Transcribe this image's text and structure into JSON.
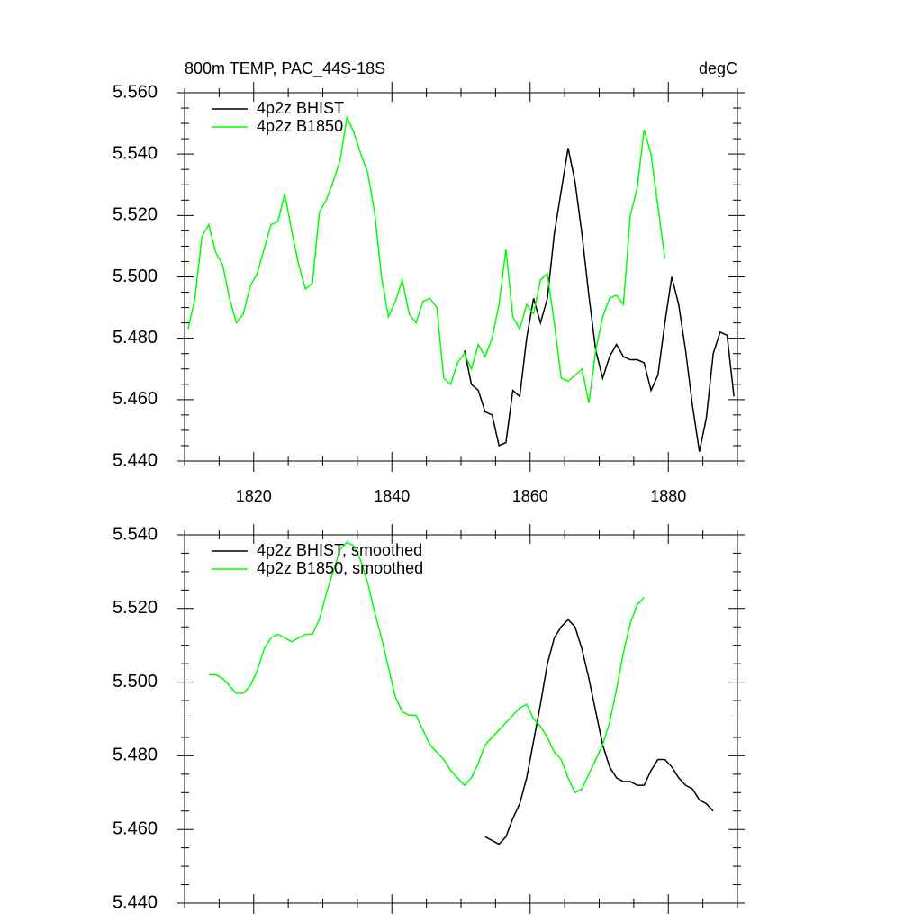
{
  "chart_data": [
    {
      "type": "line",
      "title": "800m TEMP, PAC_44S-18S",
      "units": "degC",
      "xlim": [
        1810,
        1890
      ],
      "xticks": [
        1820,
        1840,
        1860,
        1880
      ],
      "ylim": [
        5.44,
        5.56
      ],
      "yticks": [
        {
          "value": 5.44,
          "label": "5.440"
        },
        {
          "value": 5.46,
          "label": "5.460"
        },
        {
          "value": 5.48,
          "label": "5.480"
        },
        {
          "value": 5.5,
          "label": "5.500"
        },
        {
          "value": 5.52,
          "label": "5.520"
        },
        {
          "value": 5.54,
          "label": "5.540"
        },
        {
          "value": 5.56,
          "label": "5.560"
        }
      ],
      "legend": "upper left",
      "series": [
        {
          "name": "4p2z BHIST",
          "color": "#000000",
          "x": [
            1850.5,
            1851.5,
            1852.5,
            1853.5,
            1854.5,
            1855.5,
            1856.5,
            1857.5,
            1858.5,
            1859.5,
            1860.5,
            1861.5,
            1862.5,
            1863.5,
            1864.5,
            1865.5,
            1866.5,
            1867.5,
            1868.5,
            1869.5,
            1870.5,
            1871.5,
            1872.5,
            1873.5,
            1874.5,
            1875.5,
            1876.5,
            1877.5,
            1878.5,
            1879.5,
            1880.5,
            1881.5,
            1882.5,
            1883.5,
            1884.5,
            1885.5,
            1886.5,
            1887.5,
            1888.5,
            1889.5
          ],
          "values": [
            5.476,
            5.465,
            5.463,
            5.456,
            5.455,
            5.445,
            5.446,
            5.463,
            5.461,
            5.48,
            5.493,
            5.485,
            5.493,
            5.514,
            5.528,
            5.542,
            5.531,
            5.514,
            5.494,
            5.476,
            5.467,
            5.474,
            5.478,
            5.474,
            5.473,
            5.473,
            5.472,
            5.463,
            5.468,
            5.485,
            5.5,
            5.491,
            5.476,
            5.458,
            5.443,
            5.454,
            5.475,
            5.482,
            5.481,
            5.461
          ]
        },
        {
          "name": "4p2z B1850",
          "color": "#00ff00",
          "x": [
            1810.5,
            1811.5,
            1812.5,
            1813.5,
            1814.5,
            1815.5,
            1816.5,
            1817.5,
            1818.5,
            1819.5,
            1820.5,
            1821.5,
            1822.5,
            1823.5,
            1824.5,
            1825.5,
            1826.5,
            1827.5,
            1828.5,
            1829.5,
            1830.5,
            1831.5,
            1832.5,
            1833.5,
            1834.5,
            1835.5,
            1836.5,
            1837.5,
            1838.5,
            1839.5,
            1840.5,
            1841.5,
            1842.5,
            1843.5,
            1844.5,
            1845.5,
            1846.5,
            1847.5,
            1848.5,
            1849.5,
            1850.5,
            1851.5,
            1852.5,
            1853.5,
            1854.5,
            1855.5,
            1856.5,
            1857.5,
            1858.5,
            1859.5,
            1860.5,
            1861.5,
            1862.5,
            1863.5,
            1864.5,
            1865.5,
            1866.5,
            1867.5,
            1868.5,
            1869.5,
            1870.5,
            1871.5,
            1872.5,
            1873.5,
            1874.5,
            1875.5,
            1876.5,
            1877.5,
            1878.5,
            1879.5
          ],
          "values": [
            5.483,
            5.493,
            5.513,
            5.517,
            5.508,
            5.504,
            5.493,
            5.485,
            5.488,
            5.497,
            5.501,
            5.509,
            5.517,
            5.518,
            5.527,
            5.515,
            5.504,
            5.496,
            5.498,
            5.521,
            5.525,
            5.531,
            5.538,
            5.552,
            5.547,
            5.54,
            5.534,
            5.521,
            5.5,
            5.487,
            5.492,
            5.499,
            5.488,
            5.485,
            5.492,
            5.493,
            5.49,
            5.467,
            5.465,
            5.472,
            5.475,
            5.47,
            5.478,
            5.474,
            5.48,
            5.491,
            5.509,
            5.487,
            5.483,
            5.491,
            5.488,
            5.499,
            5.501,
            5.485,
            5.467,
            5.466,
            5.468,
            5.47,
            5.459,
            5.476,
            5.487,
            5.493,
            5.494,
            5.491,
            5.52,
            5.529,
            5.548,
            5.54,
            5.523,
            5.506
          ]
        }
      ]
    },
    {
      "type": "line",
      "xlim": [
        1810,
        1890
      ],
      "xticks": [
        1820,
        1840,
        1860,
        1880
      ],
      "ylim": [
        5.44,
        5.54
      ],
      "yticks": [
        {
          "value": 5.44,
          "label": "5.440"
        },
        {
          "value": 5.46,
          "label": "5.460"
        },
        {
          "value": 5.48,
          "label": "5.480"
        },
        {
          "value": 5.5,
          "label": "5.500"
        },
        {
          "value": 5.52,
          "label": "5.520"
        },
        {
          "value": 5.54,
          "label": "5.540"
        }
      ],
      "legend": "upper left",
      "series": [
        {
          "name": "4p2z BHIST, smoothed",
          "color": "#000000",
          "x": [
            1853.5,
            1854.5,
            1855.5,
            1856.5,
            1857.5,
            1858.5,
            1859.5,
            1860.5,
            1861.5,
            1862.5,
            1863.5,
            1864.5,
            1865.5,
            1866.5,
            1867.5,
            1868.5,
            1869.5,
            1870.5,
            1871.5,
            1872.5,
            1873.5,
            1874.5,
            1875.5,
            1876.5,
            1877.5,
            1878.5,
            1879.5,
            1880.5,
            1881.5,
            1882.5,
            1883.5,
            1884.5,
            1885.5,
            1886.5
          ],
          "values": [
            5.458,
            5.457,
            5.456,
            5.458,
            5.463,
            5.467,
            5.474,
            5.484,
            5.494,
            5.505,
            5.512,
            5.515,
            5.517,
            5.515,
            5.509,
            5.501,
            5.492,
            5.483,
            5.477,
            5.474,
            5.473,
            5.473,
            5.472,
            5.472,
            5.476,
            5.479,
            5.479,
            5.477,
            5.474,
            5.472,
            5.471,
            5.468,
            5.467,
            5.465
          ]
        },
        {
          "name": "4p2z B1850, smoothed",
          "color": "#00ff00",
          "x": [
            1813.5,
            1814.5,
            1815.5,
            1816.5,
            1817.5,
            1818.5,
            1819.5,
            1820.5,
            1821.5,
            1822.5,
            1823.5,
            1824.5,
            1825.5,
            1826.5,
            1827.5,
            1828.5,
            1829.5,
            1830.5,
            1831.5,
            1832.5,
            1833.5,
            1834.5,
            1835.5,
            1836.5,
            1837.5,
            1838.5,
            1839.5,
            1840.5,
            1841.5,
            1842.5,
            1843.5,
            1844.5,
            1845.5,
            1846.5,
            1847.5,
            1848.5,
            1849.5,
            1850.5,
            1851.5,
            1852.5,
            1853.5,
            1854.5,
            1855.5,
            1856.5,
            1857.5,
            1858.5,
            1859.5,
            1860.5,
            1861.5,
            1862.5,
            1863.5,
            1864.5,
            1865.5,
            1866.5,
            1867.5,
            1868.5,
            1869.5,
            1870.5,
            1871.5,
            1872.5,
            1873.5,
            1874.5,
            1875.5,
            1876.5
          ],
          "values": [
            5.502,
            5.502,
            5.501,
            5.499,
            5.497,
            5.497,
            5.499,
            5.503,
            5.509,
            5.512,
            5.513,
            5.512,
            5.511,
            5.512,
            5.513,
            5.513,
            5.517,
            5.524,
            5.53,
            5.536,
            5.538,
            5.537,
            5.533,
            5.527,
            5.519,
            5.512,
            5.504,
            5.496,
            5.492,
            5.491,
            5.491,
            5.487,
            5.483,
            5.481,
            5.479,
            5.476,
            5.474,
            5.472,
            5.474,
            5.478,
            5.483,
            5.485,
            5.487,
            5.489,
            5.491,
            5.493,
            5.494,
            5.49,
            5.488,
            5.485,
            5.481,
            5.479,
            5.474,
            5.47,
            5.471,
            5.475,
            5.479,
            5.483,
            5.489,
            5.498,
            5.508,
            5.516,
            5.521,
            5.523
          ]
        }
      ]
    }
  ]
}
